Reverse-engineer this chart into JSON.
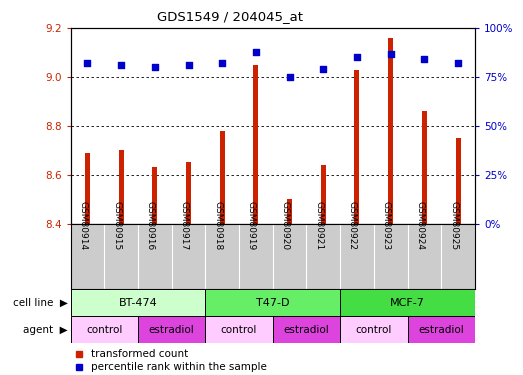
{
  "title": "GDS1549 / 204045_at",
  "samples": [
    "GSM80914",
    "GSM80915",
    "GSM80916",
    "GSM80917",
    "GSM80918",
    "GSM80919",
    "GSM80920",
    "GSM80921",
    "GSM80922",
    "GSM80923",
    "GSM80924",
    "GSM80925"
  ],
  "transformed_count": [
    8.69,
    8.7,
    8.63,
    8.65,
    8.78,
    9.05,
    8.5,
    8.64,
    9.03,
    9.16,
    8.86,
    8.75
  ],
  "percentile_rank": [
    82,
    81,
    80,
    81,
    82,
    88,
    75,
    79,
    85,
    87,
    84,
    82
  ],
  "bar_bottom": 8.4,
  "ylim_left": [
    8.4,
    9.2
  ],
  "ylim_right": [
    0,
    100
  ],
  "yticks_left": [
    8.4,
    8.6,
    8.8,
    9.0,
    9.2
  ],
  "yticks_right": [
    0,
    25,
    50,
    75,
    100
  ],
  "cell_lines": [
    {
      "label": "BT-474",
      "start": 0,
      "end": 4,
      "color": "#ccffcc"
    },
    {
      "label": "T47-D",
      "start": 4,
      "end": 8,
      "color": "#66ee66"
    },
    {
      "label": "MCF-7",
      "start": 8,
      "end": 12,
      "color": "#44dd44"
    }
  ],
  "agents": [
    {
      "label": "control",
      "start": 0,
      "end": 2,
      "color": "#ffccff"
    },
    {
      "label": "estradiol",
      "start": 2,
      "end": 4,
      "color": "#dd44dd"
    },
    {
      "label": "control",
      "start": 4,
      "end": 6,
      "color": "#ffccff"
    },
    {
      "label": "estradiol",
      "start": 6,
      "end": 8,
      "color": "#dd44dd"
    },
    {
      "label": "control",
      "start": 8,
      "end": 10,
      "color": "#ffccff"
    },
    {
      "label": "estradiol",
      "start": 10,
      "end": 12,
      "color": "#dd44dd"
    }
  ],
  "bar_color": "#cc2200",
  "dot_color": "#0000cc",
  "bar_width": 0.15,
  "left_tick_color": "#cc2200",
  "right_tick_color": "#0000cc",
  "sample_bg_color": "#cccccc",
  "sample_alt_color": "#dddddd"
}
